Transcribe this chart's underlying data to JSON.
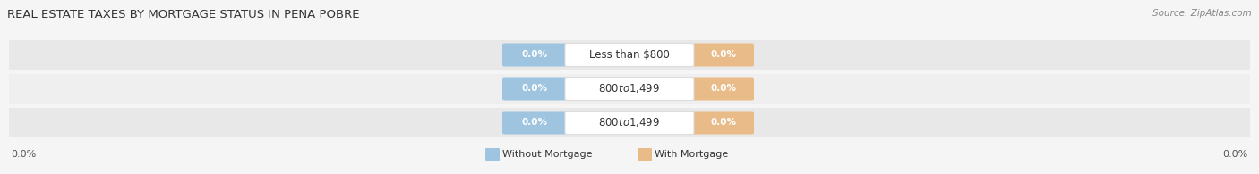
{
  "title": "REAL ESTATE TAXES BY MORTGAGE STATUS IN PENA POBRE",
  "source": "Source: ZipAtlas.com",
  "categories": [
    "Less than $800",
    "$800 to $1,499",
    "$800 to $1,499"
  ],
  "without_mortgage_vals": [
    "0.0%",
    "0.0%",
    "0.0%"
  ],
  "with_mortgage_vals": [
    "0.0%",
    "0.0%",
    "0.0%"
  ],
  "bar_color_without": "#9ec4e0",
  "bar_color_with": "#e8bb88",
  "row_bg_color": "#e8e8e8",
  "row_bg_color_alt": "#efefef",
  "bg_color": "#f5f5f5",
  "title_fontsize": 9.5,
  "source_fontsize": 7.5,
  "cat_fontsize": 8.5,
  "val_fontsize": 7.5,
  "legend_without": "Without Mortgage",
  "legend_with": "With Mortgage",
  "left_label": "0.0%",
  "right_label": "0.0%"
}
